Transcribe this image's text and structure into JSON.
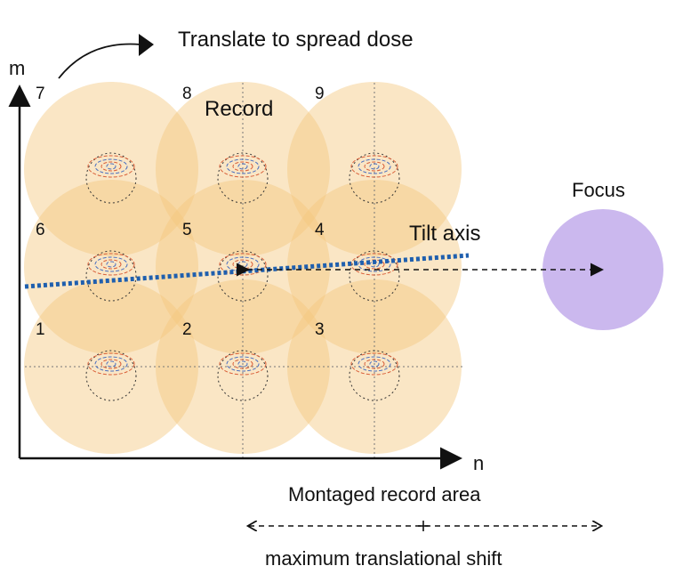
{
  "title": "Translate to spread dose",
  "axes": {
    "y_label": "m",
    "x_label": "n"
  },
  "record_label": "Record",
  "focus_label": "Focus",
  "tilt_axis_label": "Tilt axis",
  "montage_label": "Montaged record area",
  "shift_label": "maximum translational shift",
  "tiles": [
    {
      "label": "7",
      "row": 0,
      "col": 0
    },
    {
      "label": "8",
      "row": 0,
      "col": 1
    },
    {
      "label": "9",
      "row": 0,
      "col": 2
    },
    {
      "label": "6",
      "row": 1,
      "col": 0
    },
    {
      "label": "5",
      "row": 1,
      "col": 1
    },
    {
      "label": "4",
      "row": 1,
      "col": 2
    },
    {
      "label": "1",
      "row": 2,
      "col": 0
    },
    {
      "label": "2",
      "row": 2,
      "col": 1
    },
    {
      "label": "3",
      "row": 2,
      "col": 2
    }
  ],
  "colors": {
    "record_fill": "#f5c77e",
    "focus_fill": "#cbb8ee",
    "tilt_axis": "#1f5fae",
    "swirl_red": "#d9603a",
    "swirl_blue": "#4a6fc0"
  }
}
